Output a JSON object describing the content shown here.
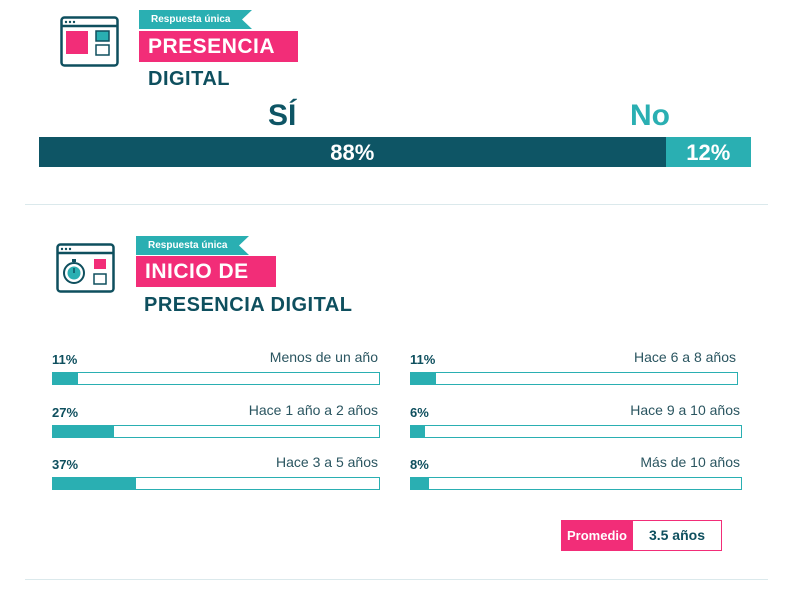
{
  "colors": {
    "dark_teal": "#0e5565",
    "teal": "#2aafb2",
    "magenta": "#f22d78"
  },
  "section1": {
    "tag": "Respuesta única",
    "title": "PRESENCIA",
    "subtitle": "DIGITAL",
    "icon": "browser-window-icon"
  },
  "section2": {
    "tag": "Respuesta única",
    "title": "INICIO DE",
    "subtitle": "PRESENCIA DIGITAL",
    "icon": "browser-stopwatch-icon",
    "average_label": "Promedio",
    "average_value": "3.5 años"
  },
  "chart_data": [
    {
      "type": "bar",
      "categories": [
        "SÍ",
        "No"
      ],
      "values": [
        88,
        12
      ],
      "value_labels": [
        "88%",
        "12%"
      ],
      "colors": [
        "#0e5565",
        "#2aafb2"
      ],
      "title": "PRESENCIA DIGITAL"
    },
    {
      "type": "bar",
      "categories": [
        "Menos de un año",
        "Hace 1 año a 2 años",
        "Hace 3 a 5 años",
        "Hace 6 a 8 años",
        "Hace 9 a 10 años",
        "Más de 10 años"
      ],
      "values": [
        11,
        27,
        37,
        11,
        6,
        8
      ],
      "value_labels": [
        "11%",
        "27%",
        "37%",
        "11%",
        "6%",
        "8%"
      ],
      "title": "INICIO DE PRESENCIA DIGITAL"
    }
  ]
}
